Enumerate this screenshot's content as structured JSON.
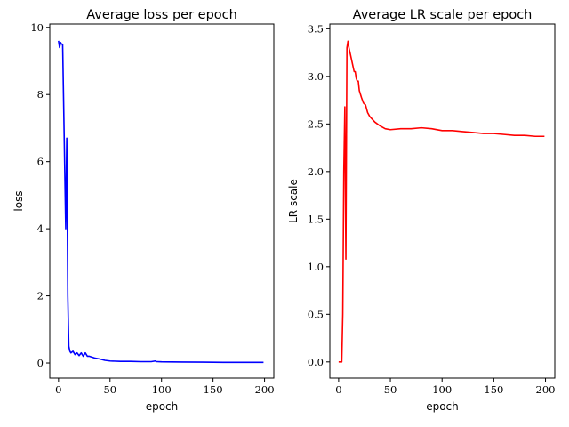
{
  "chart_data": [
    {
      "type": "line",
      "title": "Average loss per epoch",
      "xlabel": "epoch",
      "ylabel": "loss",
      "xlim": [
        -8.5,
        209
      ],
      "ylim": [
        -0.45,
        10.1
      ],
      "xticks": [
        0,
        50,
        100,
        150,
        200
      ],
      "yticks": [
        0,
        2,
        4,
        6,
        8,
        10
      ],
      "xtick_labels": [
        "0",
        "50",
        "100",
        "150",
        "200"
      ],
      "ytick_labels": [
        "0",
        "2",
        "4",
        "6",
        "8",
        "10"
      ],
      "grid": false,
      "series": [
        {
          "color": "#0000ff",
          "x": [
            0,
            1,
            2,
            3,
            4,
            7,
            8,
            9,
            10,
            11,
            12,
            14,
            16,
            18,
            20,
            22,
            24,
            26,
            28,
            30,
            35,
            40,
            45,
            50,
            60,
            70,
            80,
            90,
            94,
            95,
            96,
            100,
            120,
            140,
            160,
            180,
            199
          ],
          "y": [
            9.6,
            9.4,
            9.55,
            9.5,
            9.5,
            4.0,
            6.7,
            2.0,
            0.5,
            0.35,
            0.3,
            0.35,
            0.25,
            0.3,
            0.22,
            0.3,
            0.2,
            0.3,
            0.2,
            0.2,
            0.15,
            0.12,
            0.08,
            0.06,
            0.05,
            0.05,
            0.04,
            0.04,
            0.06,
            0.04,
            0.04,
            0.035,
            0.03,
            0.025,
            0.02,
            0.02,
            0.02
          ]
        }
      ]
    },
    {
      "type": "line",
      "title": "Average LR scale per epoch",
      "xlabel": "epoch",
      "ylabel": "LR scale",
      "xlim": [
        -8.5,
        209
      ],
      "ylim": [
        -0.17,
        3.55
      ],
      "xticks": [
        0,
        50,
        100,
        150,
        200
      ],
      "yticks": [
        0.0,
        0.5,
        1.0,
        1.5,
        2.0,
        2.5,
        3.0,
        3.5
      ],
      "xtick_labels": [
        "0",
        "50",
        "100",
        "150",
        "200"
      ],
      "ytick_labels": [
        "0.0",
        "0.5",
        "1.0",
        "1.5",
        "2.0",
        "2.5",
        "3.0",
        "3.5"
      ],
      "grid": false,
      "series": [
        {
          "color": "#ff0000",
          "x": [
            0,
            1,
            2,
            3,
            4,
            5,
            6,
            7,
            8,
            9,
            10,
            11,
            12,
            13,
            14,
            15,
            16,
            17,
            18,
            19,
            20,
            22,
            24,
            26,
            28,
            30,
            35,
            40,
            45,
            50,
            60,
            70,
            80,
            90,
            100,
            110,
            120,
            130,
            140,
            150,
            160,
            170,
            180,
            190,
            199
          ],
          "y": [
            0.0,
            0.0,
            0.0,
            0.0,
            0.5,
            2.0,
            2.68,
            1.08,
            3.3,
            3.37,
            3.3,
            3.25,
            3.2,
            3.15,
            3.1,
            3.05,
            3.05,
            2.98,
            2.95,
            2.95,
            2.85,
            2.78,
            2.72,
            2.7,
            2.62,
            2.58,
            2.52,
            2.48,
            2.45,
            2.44,
            2.45,
            2.45,
            2.46,
            2.45,
            2.43,
            2.43,
            2.42,
            2.41,
            2.4,
            2.4,
            2.39,
            2.38,
            2.38,
            2.37,
            2.37
          ]
        }
      ]
    }
  ]
}
